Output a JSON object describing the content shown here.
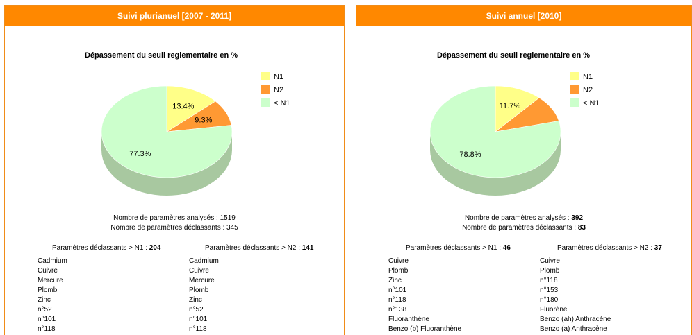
{
  "panels": [
    {
      "id": "left",
      "header": "Suivi plurianuel [2007 - 2011]",
      "chart_title": "Dépassement du seuil reglementaire en %",
      "stats": {
        "analysed_label": "Nombre de paramètres analysés : ",
        "analysed_value": "1519",
        "declassing_label": "Nombre de paramètres déclassants : ",
        "declassing_value": "345"
      },
      "n1": {
        "label": "Paramètres déclassants > N1 : ",
        "count": "204",
        "items": [
          "Cadmium",
          "Cuivre",
          "Mercure",
          "Plomb",
          "Zinc",
          "n°52",
          "n°101",
          "n°118"
        ]
      },
      "n2": {
        "label": "Paramètres déclassants > N2 : ",
        "count": "141",
        "items": [
          "Cadmium",
          "Cuivre",
          "Mercure",
          "Plomb",
          "Zinc",
          "n°52",
          "n°101",
          "n°118"
        ]
      }
    },
    {
      "id": "right",
      "header": "Suivi annuel [2010]",
      "chart_title": "Dépassement du seuil reglementaire en %",
      "stats": {
        "analysed_label": "Nombre de paramètres analysés : ",
        "analysed_value": "392",
        "declassing_label": "Nombre de paramètres déclassants : ",
        "declassing_value": "83"
      },
      "n1": {
        "label": "Paramètres déclassants > N1 : ",
        "count": "46",
        "items": [
          "Cuivre",
          "Plomb",
          "Zinc",
          "n°101",
          "n°118",
          "n°138",
          "Fluoranthène",
          "Benzo (b) Fluoranthène"
        ]
      },
      "n2": {
        "label": "Paramètres déclassants > N2 : ",
        "count": "37",
        "items": [
          "Cuivre",
          "Plomb",
          "n°118",
          "n°153",
          "n°180",
          "Fluorène",
          "Benzo (ah) Anthracène",
          "Benzo (a) Anthracène"
        ]
      }
    }
  ],
  "colors": {
    "header": "#ff8800",
    "border": "#f08c18",
    "n1": "#ffff88",
    "n2": "#ff9933",
    "below_n1": "#ccffcc",
    "below_n1_side": "#a8c8a0"
  },
  "chart_data": [
    {
      "type": "pie",
      "title": "Dépassement du seuil reglementaire en %",
      "categories": [
        "N1",
        "N2",
        "< N1"
      ],
      "values": [
        13.4,
        9.3,
        77.3
      ],
      "value_labels": [
        "13.4%",
        "9.3%",
        "77.3%"
      ],
      "legend": "right",
      "style": "3d"
    },
    {
      "type": "pie",
      "title": "Dépassement du seuil reglementaire en %",
      "categories": [
        "N1",
        "N2",
        "< N1"
      ],
      "values": [
        11.7,
        9.5,
        78.8
      ],
      "value_labels": [
        "11.7%",
        "",
        "78.8%"
      ],
      "legend": "right",
      "style": "3d"
    }
  ]
}
